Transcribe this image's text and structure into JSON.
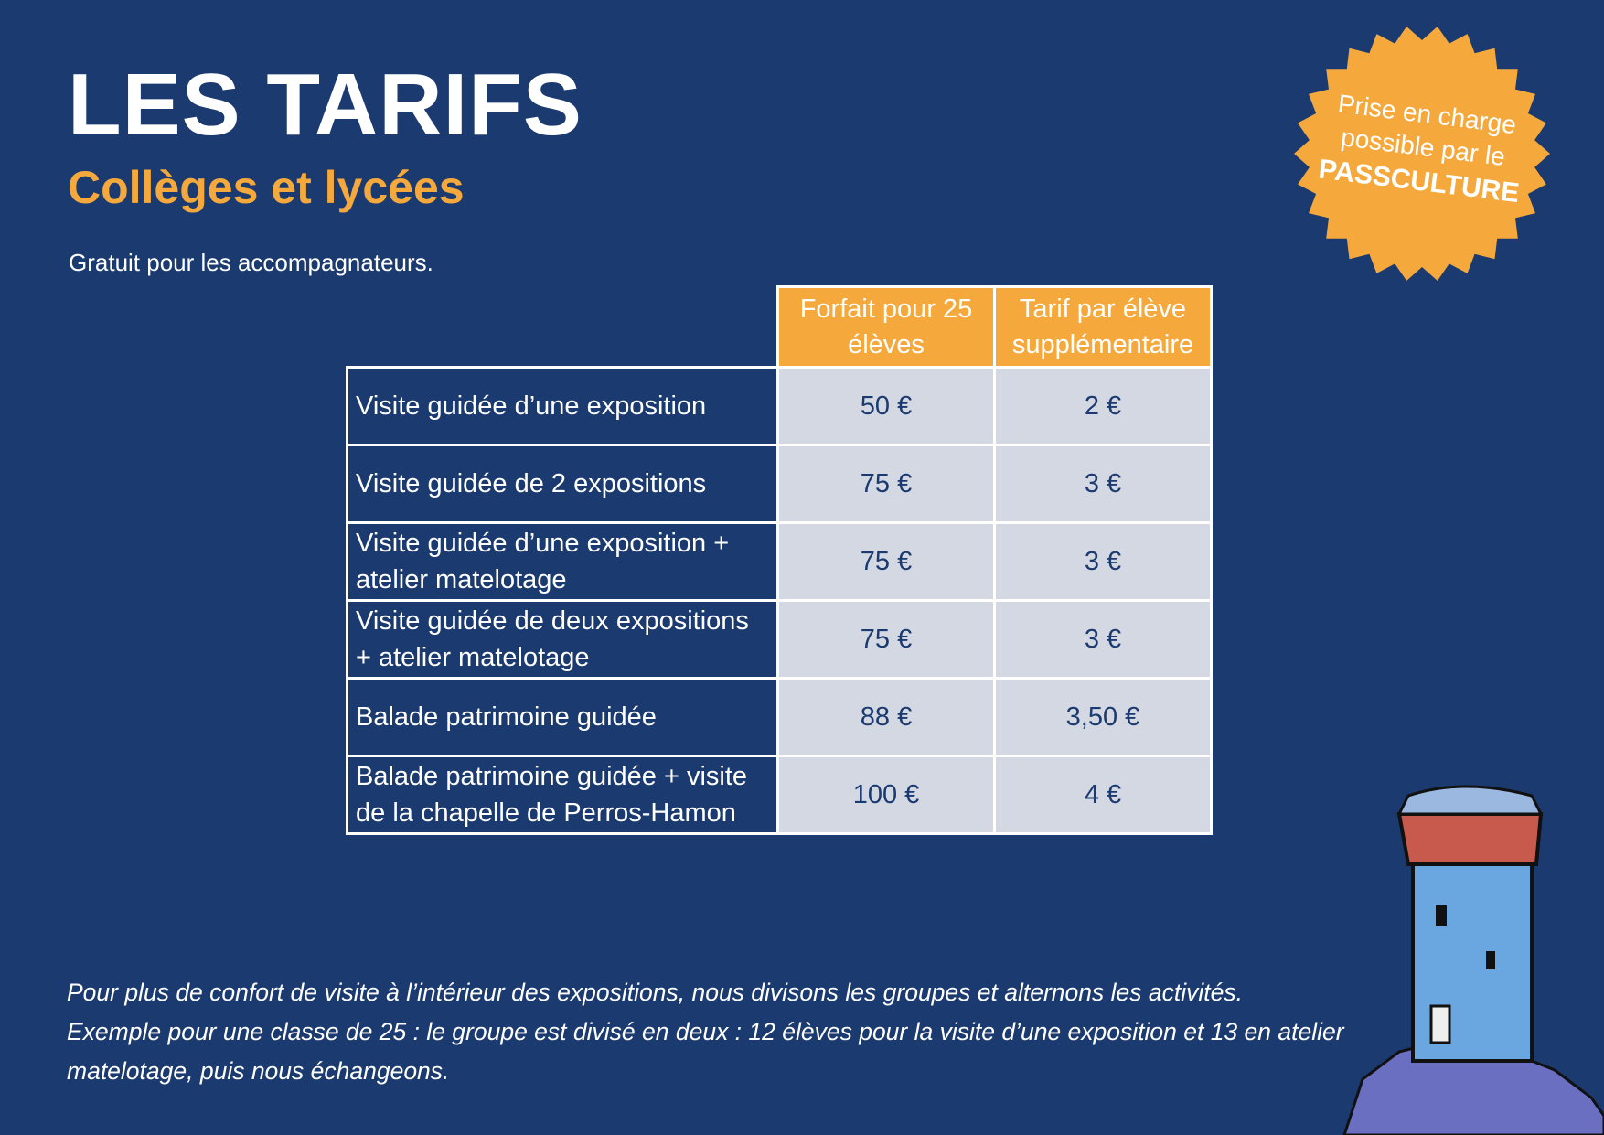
{
  "header": {
    "title": "LES TARIFS",
    "subtitle": "Collèges et lycées",
    "note": "Gratuit pour les accompagnateurs."
  },
  "badge": {
    "lines": [
      "Prise en charge",
      "possible par le",
      "PASSCULTURE"
    ]
  },
  "table": {
    "columns": [
      "Forfait pour 25 élèves",
      "Tarif par élève supplémentaire"
    ],
    "rows": [
      [
        "Visite guidée d’une exposition",
        "50 €",
        "2 €"
      ],
      [
        "Visite guidée de 2 expositions",
        "75 €",
        "3 €"
      ],
      [
        "Visite guidée d’une exposition + atelier matelotage",
        "75 €",
        "3 €"
      ],
      [
        "Visite guidée de deux expositions + atelier matelotage",
        "75 €",
        "3 €"
      ],
      [
        "Balade patrimoine guidée",
        "88 €",
        "3,50 €"
      ],
      [
        "Balade patrimoine guidée + visite de la chapelle de Perros-Hamon",
        "100 €",
        "4 €"
      ]
    ]
  },
  "footer": {
    "lines": [
      "Pour plus de confort de visite à l’intérieur des expositions, nous divisons les groupes et alternons les activités.",
      "Exemple pour une classe de 25 : le groupe est divisé en deux : 12 élèves pour la visite d’une exposition et 13 en atelier",
      "matelotage, puis nous échangeons."
    ]
  }
}
